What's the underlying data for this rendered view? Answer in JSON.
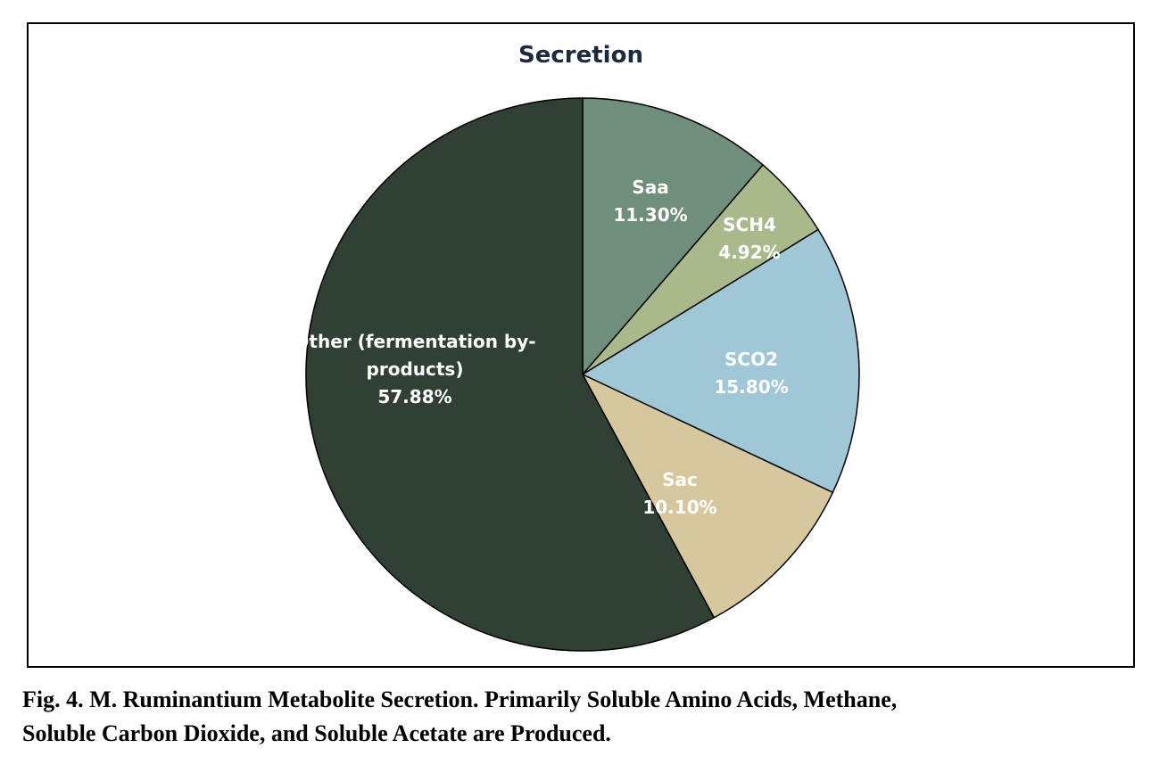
{
  "chart_data": {
    "type": "pie",
    "title": "Secretion",
    "start_angle_deg": 90,
    "direction": "clockwise",
    "slices": [
      {
        "label": "Saa",
        "display_lines": [
          "Saa"
        ],
        "percent_label": "11.30%",
        "value": 11.3,
        "color": "#6f8f7c"
      },
      {
        "label": "SCH4",
        "display_lines": [
          "SCH4"
        ],
        "percent_label": "4.92%",
        "value": 4.92,
        "color": "#a9b98a"
      },
      {
        "label": "SCO2",
        "display_lines": [
          "SCO2"
        ],
        "percent_label": "15.80%",
        "value": 15.8,
        "color": "#9fc7d6"
      },
      {
        "label": "Sac",
        "display_lines": [
          "Sac"
        ],
        "percent_label": "10.10%",
        "value": 10.1,
        "color": "#d6c79c"
      },
      {
        "label": "Other (fermentation by-products)",
        "display_lines": [
          "Other (fermentation by-",
          "products)"
        ],
        "percent_label": "57.88%",
        "value": 57.88,
        "color": "#304034"
      }
    ],
    "legend": "none",
    "data_labels": "inside"
  },
  "caption": {
    "line1": "Fig. 4. M. Ruminantium Metabolite Secretion. Primarily Soluble Amino Acids, Methane,",
    "line2": "Soluble Carbon Dioxide, and Soluble Acetate are Produced."
  },
  "colors": {
    "slice_border": "#000000",
    "label_text": "#ffffff",
    "title_text": "#1b2a3d"
  }
}
